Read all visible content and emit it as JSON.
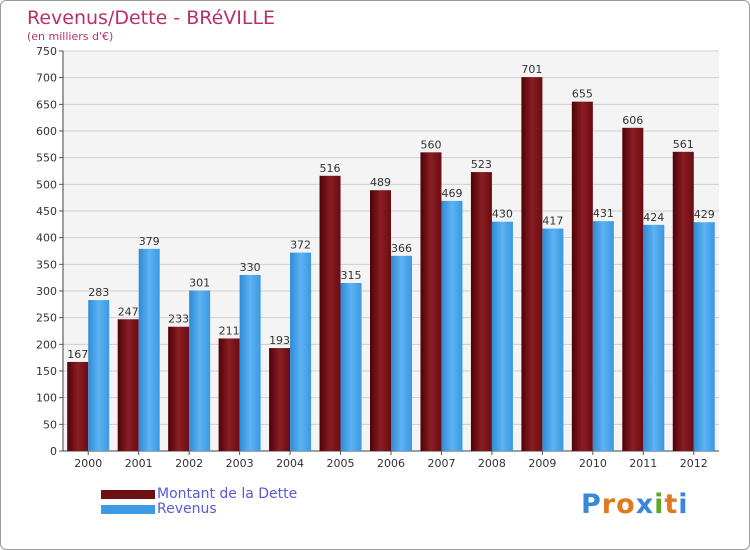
{
  "title": "Revenus/Dette - BRéVILLE",
  "subtitle": "(en milliers d'€)",
  "logo": "Proxiti",
  "colors": {
    "dette": "#6e0f14",
    "revenus": "#3d9be6",
    "title": "#b8306a",
    "legend_text": "#5858d8"
  },
  "legend": [
    {
      "label": "Montant de la Dette",
      "color": "#6e0f14"
    },
    {
      "label": "Revenus",
      "color": "#3d9be6"
    }
  ],
  "chart_data": {
    "type": "bar",
    "title": "Revenus/Dette - BRéVILLE",
    "subtitle": "(en milliers d'€)",
    "xlabel": "",
    "ylabel": "",
    "ylim": [
      0,
      750
    ],
    "ytick_step": 50,
    "grid": true,
    "legend_position": "bottom-left",
    "categories": [
      "2000",
      "2001",
      "2002",
      "2003",
      "2004",
      "2005",
      "2006",
      "2007",
      "2008",
      "2009",
      "2010",
      "2011",
      "2012"
    ],
    "series": [
      {
        "name": "Montant de la Dette",
        "values": [
          167,
          247,
          233,
          211,
          193,
          516,
          489,
          560,
          523,
          701,
          655,
          606,
          561
        ]
      },
      {
        "name": "Revenus",
        "values": [
          283,
          379,
          301,
          330,
          372,
          315,
          366,
          469,
          430,
          417,
          431,
          424,
          429
        ]
      }
    ]
  }
}
